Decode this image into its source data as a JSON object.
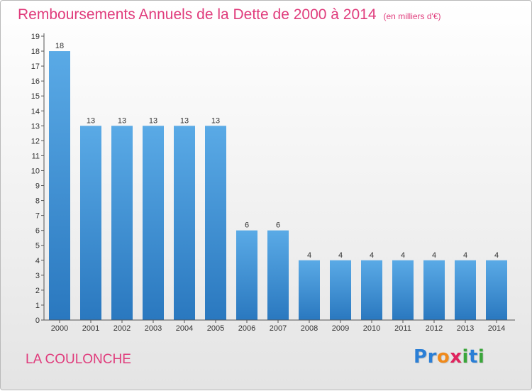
{
  "header": {
    "title": "Remboursements Annuels de la Dette de 2000 à 2014",
    "unit": "(en milliers d'€)"
  },
  "footer": {
    "commune": "LA COULONCHE",
    "brand_letters": [
      "P",
      "r",
      "o",
      "x",
      "i",
      "t",
      "i"
    ],
    "brand_colors": [
      "#2b7fd6",
      "#2b7fd6",
      "#f08a1c",
      "#e0245e",
      "#3aa63a",
      "#2b7fd6",
      "#3aa63a"
    ]
  },
  "colors": {
    "bar_top": "#5aaae6",
    "bar_bottom": "#2a78bf",
    "title": "#e03c7c"
  },
  "chart_data": {
    "type": "bar",
    "categories": [
      "2000",
      "2001",
      "2002",
      "2003",
      "2004",
      "2005",
      "2006",
      "2007",
      "2008",
      "2009",
      "2010",
      "2011",
      "2012",
      "2013",
      "2014"
    ],
    "values": [
      18,
      13,
      13,
      13,
      13,
      13,
      6,
      6,
      4,
      4,
      4,
      4,
      4,
      4,
      4
    ],
    "ylim": [
      0,
      19
    ],
    "yticks": [
      0,
      1,
      2,
      3,
      4,
      5,
      6,
      7,
      8,
      9,
      10,
      11,
      12,
      13,
      14,
      15,
      16,
      17,
      18,
      19
    ],
    "grid": false,
    "xlabel": "",
    "ylabel": ""
  }
}
